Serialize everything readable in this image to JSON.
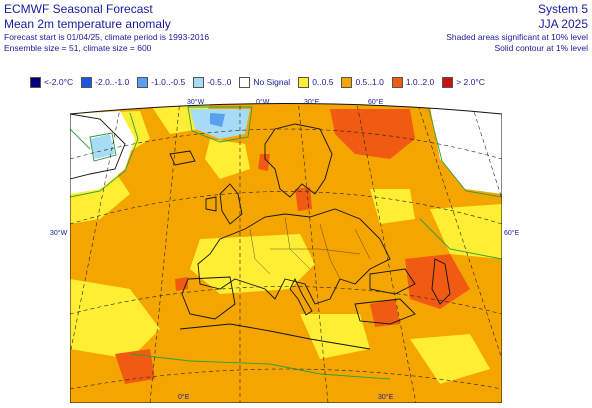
{
  "header": {
    "system_title": "ECMWF Seasonal Forecast",
    "product": "Mean 2m temperature anomaly",
    "forecast_start": "Forecast start is 01/04/25, climate period is 1993-2016",
    "ensemble": "Ensemble size = 51, climate size = 600",
    "system": "System 5",
    "season": "JJA 2025",
    "significance_note": "Shaded areas significant at 10% level",
    "contour_note": "Solid contour at 1% level"
  },
  "legend": [
    {
      "label": "<-2.0°C",
      "color": "#00007a"
    },
    {
      "label": "-2.0..-1.0",
      "color": "#1f54e8"
    },
    {
      "label": "-1.0..-0.5",
      "color": "#5aa0f0"
    },
    {
      "label": "-0.5..0",
      "color": "#a6dcf5"
    },
    {
      "label": "No Signal",
      "color": "#ffffff"
    },
    {
      "label": "0..0.5",
      "color": "#ffee33"
    },
    {
      "label": "0.5..1.0",
      "color": "#f5a500"
    },
    {
      "label": "1.0..2.0",
      "color": "#f05a12"
    },
    {
      "label": "> 2.0°C",
      "color": "#c81212"
    }
  ],
  "map": {
    "region": "Europe",
    "top_labels": [
      "30°W",
      "0°W",
      "30°E",
      "60°E"
    ],
    "side_left": "30°W",
    "side_right": "60°E",
    "bottom_labels": [
      "0°E",
      "30°E"
    ]
  }
}
